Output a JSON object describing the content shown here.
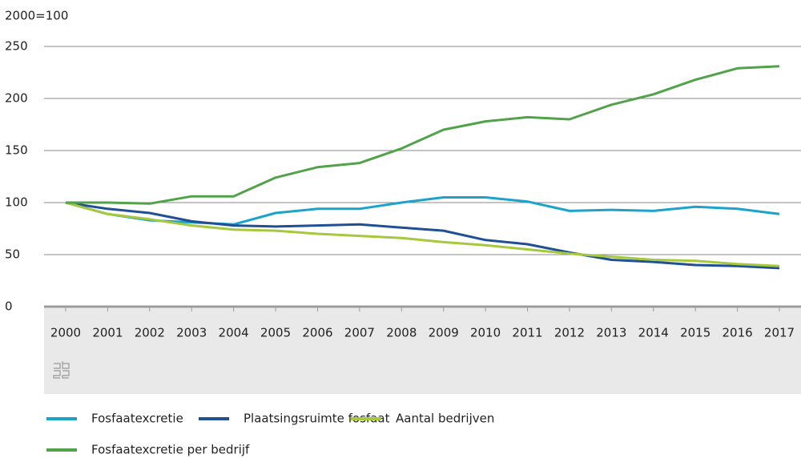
{
  "chart_data": {
    "type": "line",
    "y_unit_label": "2000=100",
    "categories": [
      "2000",
      "2001",
      "2002",
      "2003",
      "2004",
      "2005",
      "2006",
      "2007",
      "2008",
      "2009",
      "2010",
      "2011",
      "2012",
      "2013",
      "2014",
      "2015",
      "2016",
      "2017"
    ],
    "series": [
      {
        "name": "Fosfaatexcretie",
        "color": "#1ba3cb",
        "values": [
          100,
          89,
          83,
          81,
          79,
          90,
          94,
          94,
          100,
          105,
          105,
          101,
          92,
          93,
          92,
          96,
          94,
          89
        ]
      },
      {
        "name": "Plaatsingsruimte fosfaat",
        "color": "#1f4f94",
        "values": [
          100,
          94,
          90,
          82,
          78,
          77,
          78,
          79,
          76,
          73,
          64,
          60,
          52,
          45,
          43,
          40,
          39,
          37
        ]
      },
      {
        "name": "Aantal bedrijven",
        "color": "#a6c83d",
        "values": [
          100,
          89,
          84,
          78,
          74,
          73,
          70,
          68,
          66,
          62,
          59,
          55,
          51,
          48,
          45,
          44,
          41,
          39
        ]
      },
      {
        "name": "Fosfaatexcretie per bedrijf",
        "color": "#52a24a",
        "values": [
          100,
          100,
          99,
          106,
          106,
          124,
          134,
          138,
          152,
          170,
          178,
          182,
          180,
          194,
          204,
          218,
          229,
          231
        ]
      }
    ],
    "ylim": [
      0,
      250
    ],
    "yticks": [
      0,
      50,
      100,
      150,
      200,
      250
    ],
    "grid": true
  }
}
